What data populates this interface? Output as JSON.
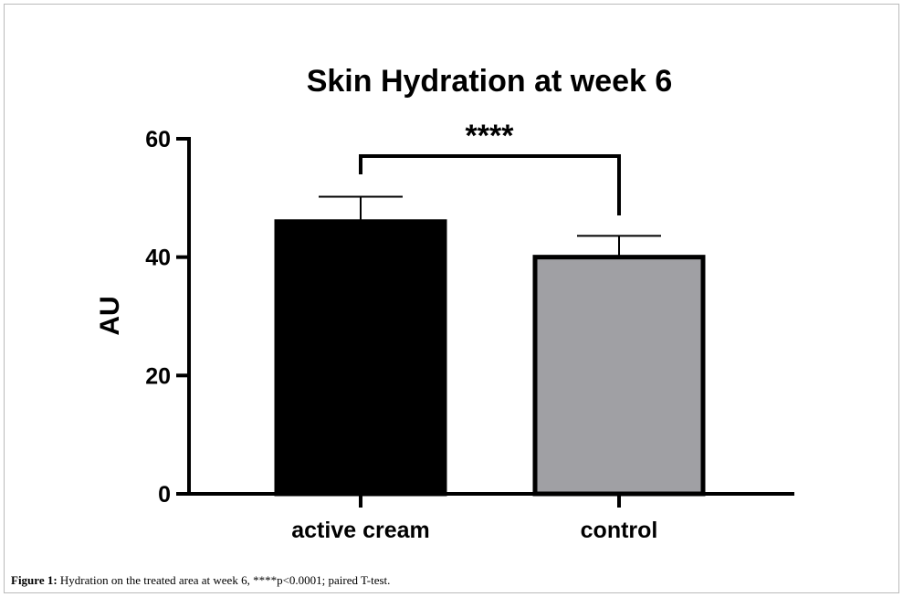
{
  "chart_data": {
    "type": "bar",
    "title": "Skin Hydration at week 6",
    "y_label": "AU",
    "categories": [
      "active cream",
      "control"
    ],
    "values": [
      46,
      40
    ],
    "errors": [
      4.2,
      3.6
    ],
    "colors": [
      "#000000",
      "#a0a0a4"
    ],
    "ylim": [
      0,
      60
    ],
    "yticks": [
      0,
      20,
      40,
      60
    ],
    "annotation": "****"
  },
  "caption": {
    "label": "Figure 1:",
    "text": "Hydration on the treated area at week 6, ****p<0.0001; paired T-test."
  }
}
